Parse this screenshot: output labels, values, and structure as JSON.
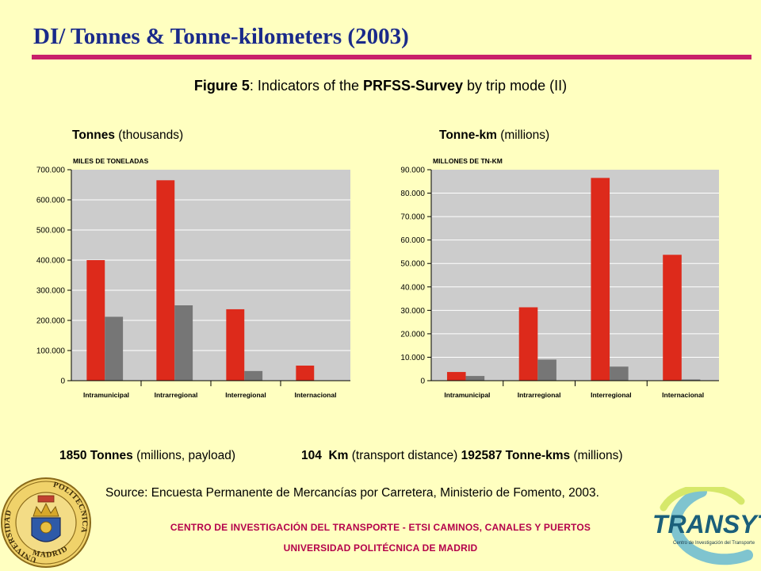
{
  "header": {
    "title": "DI/ Tonnes & Tonne-kilometers (2003)",
    "fig_label": "Figure 5",
    "fig_text1": ": Indicators of the ",
    "fig_bold": "PRFSS-Survey",
    "fig_text2": " by trip mode (II)"
  },
  "left_title": {
    "bold": "Tonnes",
    "rest": " (thousands)"
  },
  "right_title": {
    "bold": "Tonne-km",
    "rest": " (millions)"
  },
  "colors": {
    "primary": "#dd2a1b",
    "secondary": "#767676",
    "plot_bg": "#cccccc",
    "title": "#1a2a8a",
    "accent": "#c8206a"
  },
  "chart_data": [
    {
      "type": "bar",
      "title": "MILES DE TONELADAS",
      "categories": [
        "Intramunicipal",
        "Intrarregional",
        "Interregional",
        "Internacional"
      ],
      "series": [
        {
          "values": [
            400000,
            665000,
            237000,
            50000
          ]
        },
        {
          "values": [
            212000,
            250000,
            32000,
            0
          ]
        }
      ],
      "ylim": [
        0,
        700000
      ],
      "yticks": [
        "0",
        "100.000",
        "200.000",
        "300.000",
        "400.000",
        "500.000",
        "600.000",
        "700.000"
      ],
      "grid": true
    },
    {
      "type": "bar",
      "title": "MILLONES DE TN-KM",
      "categories": [
        "Intramunicipal",
        "Intrarregional",
        "Interregional",
        "Internacional"
      ],
      "series": [
        {
          "values": [
            3700,
            31300,
            86500,
            53700
          ]
        },
        {
          "values": [
            2000,
            9000,
            6000,
            500
          ]
        }
      ],
      "ylim": [
        0,
        90000
      ],
      "yticks": [
        "0",
        "10.000",
        "20.000",
        "30.000",
        "40.000",
        "50.000",
        "60.000",
        "70.000",
        "80.000",
        "90.000"
      ],
      "grid": true
    }
  ],
  "stats": {
    "tonnes_value": "1850",
    "tonnes_bold": "Tonnes",
    "tonnes_rest": " (millions, payload)",
    "km_value": "104  Km",
    "km_rest": " (transport distance) ",
    "tkm_value": "192587",
    "tkm_bold": "Tonne-kms",
    "tkm_rest": " (millions)"
  },
  "source": "Source: Encuesta Permanente de Mercancías por Carretera, Ministerio de Fomento, 2003.",
  "footer": {
    "line1": "CENTRO DE INVESTIGACIÓN DEL TRANSPORTE - ETSI CAMINOS, CANALES Y PUERTOS",
    "line2": "UNIVERSIDAD POLITÉCNICA DE MADRID"
  },
  "seal": {
    "left": "UNIVERSIDAD",
    "right": "POLITECNICA",
    "bottom": "MADRID"
  },
  "logo": {
    "name": "TRANSYT",
    "tagline": "Centro de Investigación del Transporte"
  }
}
